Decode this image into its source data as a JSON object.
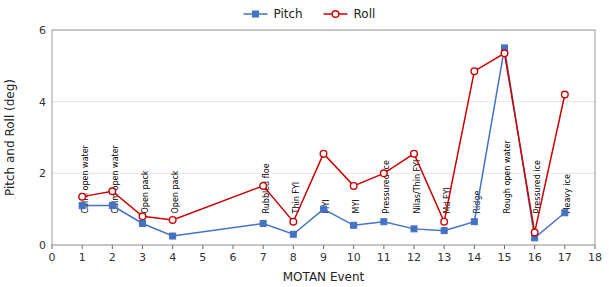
{
  "chart_data": {
    "type": "line",
    "x": [
      1,
      2,
      3,
      4,
      7,
      8,
      9,
      10,
      11,
      12,
      13,
      14,
      15,
      16,
      17
    ],
    "series": [
      {
        "name": "Pitch",
        "color": "#4472c4",
        "marker": "square",
        "values": [
          1.1,
          1.1,
          0.6,
          0.25,
          0.6,
          0.3,
          1.0,
          0.55,
          0.65,
          0.45,
          0.4,
          0.65,
          5.5,
          0.2,
          0.9
        ]
      },
      {
        "name": "Roll",
        "color": "#cc0000",
        "marker": "circle",
        "values": [
          1.35,
          1.5,
          0.8,
          0.7,
          1.65,
          0.65,
          2.55,
          1.65,
          2.0,
          2.55,
          0.65,
          4.85,
          5.35,
          0.35,
          4.2
        ]
      }
    ],
    "xlabel": "MOTAN Event",
    "ylabel": "Pitch and Roll (deg)",
    "xlim": [
      0,
      18
    ],
    "ylim": [
      0.0,
      6.0
    ],
    "xticks": [
      0,
      1,
      2,
      3,
      4,
      5,
      6,
      7,
      8,
      9,
      10,
      11,
      12,
      13,
      14,
      15,
      16,
      17,
      18
    ],
    "yticks": [
      0.0,
      2.0,
      4.0,
      6.0
    ],
    "annotations": [
      {
        "text": "Calm open water",
        "x": 1,
        "y": 0.88
      },
      {
        "text": "Calm open water",
        "x": 2,
        "y": 0.88
      },
      {
        "text": "Open pack",
        "x": 3,
        "y": 0.88
      },
      {
        "text": "Open pack",
        "x": 4,
        "y": 0.88
      },
      {
        "text": "Rubbled floe",
        "x": 7,
        "y": 0.88
      },
      {
        "text": "Thin FYI",
        "x": 8,
        "y": 0.88
      },
      {
        "text": "MYI",
        "x": 9,
        "y": 0.88
      },
      {
        "text": "MYI",
        "x": 10,
        "y": 0.88
      },
      {
        "text": "Pressured ice",
        "x": 11,
        "y": 0.88
      },
      {
        "text": "Nilas/Thin FYI",
        "x": 12,
        "y": 0.88
      },
      {
        "text": "Md FYI",
        "x": 13,
        "y": 0.88
      },
      {
        "text": "Ridge",
        "x": 14,
        "y": 0.88
      },
      {
        "text": "Rough open water",
        "x": 15,
        "y": 0.88
      },
      {
        "text": "Pressured ice",
        "x": 16,
        "y": 0.88
      },
      {
        "text": "Heavy ice",
        "x": 17,
        "y": 0.88
      }
    ],
    "legend": "upper center"
  }
}
